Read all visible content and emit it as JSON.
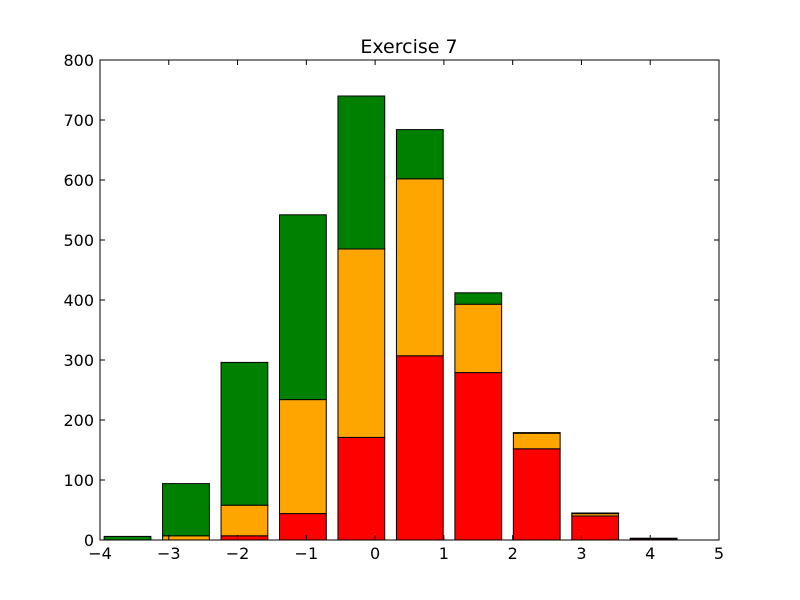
{
  "chart_data": {
    "type": "bar",
    "stacked": true,
    "title": "Exercise 7",
    "xlabel": "",
    "ylabel": "",
    "xlim": [
      -4,
      5
    ],
    "ylim": [
      0,
      800
    ],
    "x_ticks": [
      -4,
      -3,
      -2,
      -1,
      0,
      1,
      2,
      3,
      4,
      5
    ],
    "x_tick_labels": [
      "−4",
      "−3",
      "−2",
      "−1",
      "0",
      "1",
      "2",
      "3",
      "4",
      "5"
    ],
    "y_ticks": [
      0,
      100,
      200,
      300,
      400,
      500,
      600,
      700,
      800
    ],
    "y_tick_labels": [
      "0",
      "100",
      "200",
      "300",
      "400",
      "500",
      "600",
      "700",
      "800"
    ],
    "bar_width": 0.68,
    "bar_left_edges": [
      -3.94,
      -3.09,
      -2.24,
      -1.39,
      -0.54,
      0.31,
      1.16,
      2.01,
      2.86,
      3.71
    ],
    "grid": false,
    "legend": false,
    "series": [
      {
        "color": "#ff0000",
        "values": [
          0,
          0,
          7,
          44,
          171,
          307,
          279,
          152,
          40,
          2
        ]
      },
      {
        "color": "#ffa500",
        "values": [
          0,
          7,
          51,
          190,
          314,
          295,
          114,
          26,
          4,
          1
        ]
      },
      {
        "color": "#008000",
        "values": [
          6,
          87,
          238,
          308,
          255,
          82,
          19,
          1,
          1,
          0
        ]
      }
    ]
  }
}
